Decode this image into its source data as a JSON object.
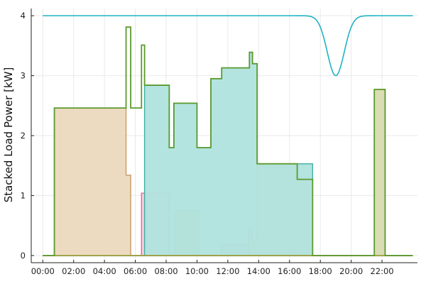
{
  "chart_data": {
    "type": "area",
    "title": "",
    "xlabel": "",
    "ylabel": "Stacked Load Power [kW]",
    "x_unit": "hours",
    "xlim": [
      -0.75,
      24.3
    ],
    "ylim": [
      -0.12,
      4.12
    ],
    "grid": true,
    "legend": "none",
    "x_ticks": [
      {
        "value": 0,
        "label": "00:00"
      },
      {
        "value": 2,
        "label": "02:00"
      },
      {
        "value": 4,
        "label": "04:00"
      },
      {
        "value": 6,
        "label": "06:00"
      },
      {
        "value": 8,
        "label": "08:00"
      },
      {
        "value": 10,
        "label": "10:00"
      },
      {
        "value": 12,
        "label": "12:00"
      },
      {
        "value": 14,
        "label": "14:00"
      },
      {
        "value": 16,
        "label": "16:00"
      },
      {
        "value": 18,
        "label": "18:00"
      },
      {
        "value": 20,
        "label": "20:00"
      },
      {
        "value": 22,
        "label": "22:00"
      }
    ],
    "y_ticks": [
      {
        "value": 0,
        "label": "0"
      },
      {
        "value": 1,
        "label": "1"
      },
      {
        "value": 2,
        "label": "2"
      },
      {
        "value": 3,
        "label": "3"
      },
      {
        "value": 4,
        "label": "4"
      }
    ],
    "stacked_bands": [
      {
        "fill": "#f9c8dc",
        "stroke": "#e5688f",
        "points": [
          [
            0,
            0
          ],
          [
            6.4,
            0
          ],
          [
            6.4,
            1.04
          ],
          [
            8.2,
            1.04
          ],
          [
            8.2,
            0
          ],
          [
            24,
            0
          ]
        ]
      },
      {
        "fill": "#ddd5ad",
        "stroke": "#a89460",
        "points": [
          [
            0,
            0
          ],
          [
            8.6,
            0
          ],
          [
            8.6,
            0.74
          ],
          [
            10.1,
            0.74
          ],
          [
            10.1,
            0
          ],
          [
            24,
            0
          ]
        ]
      },
      {
        "fill": "#e4cbe8",
        "stroke": "#b97fc4",
        "points": [
          [
            0,
            0
          ],
          [
            11.6,
            0
          ],
          [
            11.6,
            0.18
          ],
          [
            13.4,
            0.18
          ],
          [
            13.4,
            0
          ],
          [
            24,
            0
          ]
        ]
      },
      {
        "fill": "#b5e1f7",
        "stroke": "#4fa8d6",
        "points": [
          [
            0,
            0
          ],
          [
            13.4,
            0
          ],
          [
            13.4,
            0.26
          ],
          [
            16.4,
            0.26
          ],
          [
            16.4,
            0
          ],
          [
            24,
            0
          ]
        ]
      },
      {
        "fill": "#f6cfc4",
        "stroke": "#e8896e",
        "points": [
          [
            0,
            0
          ],
          [
            13.35,
            0
          ],
          [
            13.35,
            0.44
          ],
          [
            13.55,
            0.44
          ],
          [
            13.55,
            0.26
          ],
          [
            13.9,
            0.26
          ],
          [
            13.9,
            1.53
          ],
          [
            16.5,
            1.53
          ],
          [
            16.5,
            1.27
          ],
          [
            17.5,
            1.27
          ],
          [
            17.5,
            0
          ],
          [
            24,
            0
          ]
        ]
      },
      {
        "fill": "#b0e3dd",
        "stroke": "#3fb0a5",
        "points": [
          [
            0,
            0
          ],
          [
            6.6,
            0
          ],
          [
            6.6,
            2.84
          ],
          [
            8.2,
            2.84
          ],
          [
            8.2,
            2.84
          ],
          [
            8.2,
            1.8
          ],
          [
            8.5,
            1.8
          ],
          [
            8.5,
            2.54
          ],
          [
            10.0,
            2.54
          ],
          [
            10.0,
            1.8
          ],
          [
            10.9,
            1.8
          ],
          [
            10.9,
            2.95
          ],
          [
            11.6,
            2.95
          ],
          [
            11.6,
            3.13
          ],
          [
            13.4,
            3.13
          ],
          [
            13.4,
            3.39
          ],
          [
            13.6,
            3.39
          ],
          [
            13.6,
            3.2
          ],
          [
            13.9,
            3.2
          ],
          [
            13.9,
            1.53
          ],
          [
            17.5,
            1.53
          ],
          [
            17.5,
            0
          ],
          [
            24,
            0
          ]
        ]
      },
      {
        "fill": "#ecd9be",
        "stroke": "#c49a62",
        "points": [
          [
            0,
            0
          ],
          [
            0.75,
            0
          ],
          [
            0.75,
            2.46
          ],
          [
            5.4,
            2.46
          ],
          [
            5.4,
            1.34
          ],
          [
            5.7,
            1.34
          ],
          [
            5.7,
            0
          ],
          [
            6.4,
            0
          ],
          [
            6.4,
            0
          ],
          [
            24,
            0
          ]
        ]
      },
      {
        "fill": "#d8dab0",
        "stroke": "#9ca234",
        "points": [
          [
            0,
            0
          ],
          [
            21.5,
            0
          ],
          [
            21.5,
            2.77
          ],
          [
            22.2,
            2.77
          ],
          [
            22.2,
            0
          ],
          [
            24,
            0
          ]
        ]
      }
    ],
    "total_envelope": {
      "stroke": "#5b9a2e",
      "points": [
        [
          0,
          0
        ],
        [
          0.75,
          0
        ],
        [
          0.75,
          2.46
        ],
        [
          5.4,
          2.46
        ],
        [
          5.4,
          3.81
        ],
        [
          5.7,
          3.81
        ],
        [
          5.7,
          2.46
        ],
        [
          6.4,
          2.46
        ],
        [
          6.4,
          3.51
        ],
        [
          6.6,
          3.51
        ],
        [
          6.6,
          2.84
        ],
        [
          8.2,
          2.84
        ],
        [
          8.2,
          1.8
        ],
        [
          8.5,
          1.8
        ],
        [
          8.5,
          2.54
        ],
        [
          10.0,
          2.54
        ],
        [
          10.0,
          1.8
        ],
        [
          10.9,
          1.8
        ],
        [
          10.9,
          2.95
        ],
        [
          11.6,
          2.95
        ],
        [
          11.6,
          3.13
        ],
        [
          13.4,
          3.13
        ],
        [
          13.4,
          3.39
        ],
        [
          13.6,
          3.39
        ],
        [
          13.6,
          3.2
        ],
        [
          13.9,
          3.2
        ],
        [
          13.9,
          1.53
        ],
        [
          16.5,
          1.53
        ],
        [
          16.5,
          1.27
        ],
        [
          17.5,
          1.27
        ],
        [
          17.5,
          0
        ],
        [
          21.5,
          0
        ],
        [
          21.5,
          2.77
        ],
        [
          22.2,
          2.77
        ],
        [
          22.2,
          0
        ],
        [
          24,
          0
        ]
      ]
    },
    "limit_curve": {
      "color": "#1fb3c4",
      "baseline": 4.0,
      "dip_center": 19.0,
      "dip_depth": 1.0,
      "dip_width": 0.55,
      "x_start": 0,
      "x_end": 24
    },
    "colors": {
      "grid": "#e9e9e9",
      "axis": "#222222"
    }
  }
}
